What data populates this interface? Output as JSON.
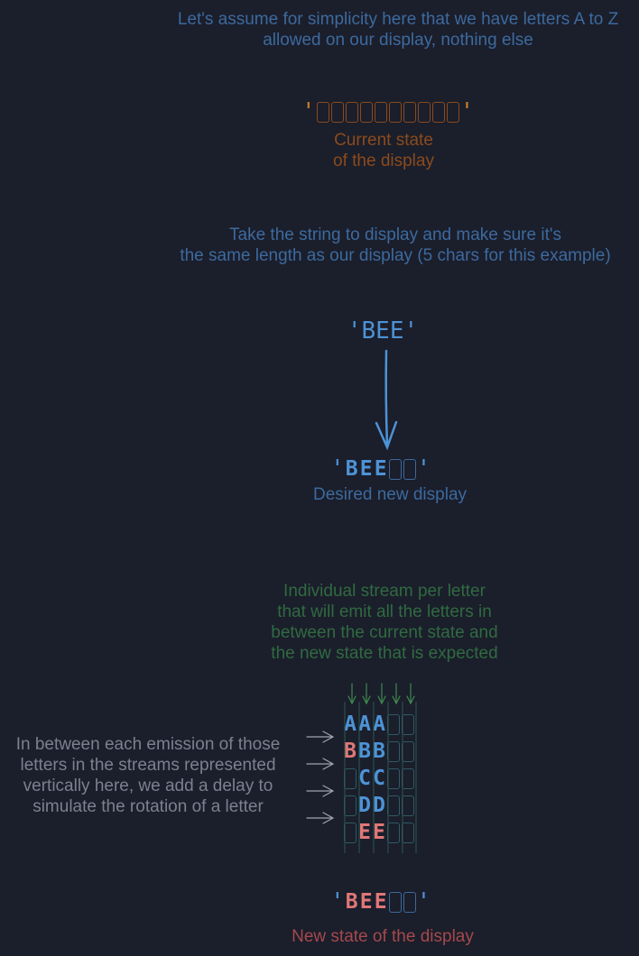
{
  "intro": {
    "line1": "Let's assume for simplicity here that we have letters A to Z",
    "line2": "allowed on our display, nothing else"
  },
  "current_state": {
    "quote_open": "'",
    "quote_close": "'",
    "label_line1": "Current state",
    "label_line2": "of the display",
    "empty_cells": 10
  },
  "step2": {
    "line1": "Take the string to display and make sure it's",
    "line2": "the same length as our display (5 chars for this example)"
  },
  "input_string": "'BEE'",
  "desired": {
    "quote_open": "'",
    "quote_close": "'",
    "letters": [
      "B",
      "E",
      "E",
      "",
      ""
    ],
    "label": "Desired new display"
  },
  "streams_note": {
    "line1": "Individual stream per letter",
    "line2": "that will emit all the letters in",
    "line3": "between the current state and",
    "line4": "the new state that is expected"
  },
  "delay_note": {
    "line1": "In between each emission of those",
    "line2": "letters in the streams represented",
    "line3": "vertically here, we add a delay to",
    "line4": "simulate the rotation of a letter"
  },
  "stream_grid": [
    [
      {
        "ch": "A",
        "color": "blue"
      },
      {
        "ch": "A",
        "color": "blue"
      },
      {
        "ch": "A",
        "color": "blue"
      },
      {
        "ch": "",
        "color": "none"
      },
      {
        "ch": "",
        "color": "none"
      }
    ],
    [
      {
        "ch": "B",
        "color": "red"
      },
      {
        "ch": "B",
        "color": "blue"
      },
      {
        "ch": "B",
        "color": "blue"
      },
      {
        "ch": "",
        "color": "none"
      },
      {
        "ch": "",
        "color": "none"
      }
    ],
    [
      {
        "ch": "",
        "color": "none"
      },
      {
        "ch": "C",
        "color": "blue"
      },
      {
        "ch": "C",
        "color": "blue"
      },
      {
        "ch": "",
        "color": "none"
      },
      {
        "ch": "",
        "color": "none"
      }
    ],
    [
      {
        "ch": "",
        "color": "none"
      },
      {
        "ch": "D",
        "color": "blue"
      },
      {
        "ch": "D",
        "color": "blue"
      },
      {
        "ch": "",
        "color": "none"
      },
      {
        "ch": "",
        "color": "none"
      }
    ],
    [
      {
        "ch": "",
        "color": "none"
      },
      {
        "ch": "E",
        "color": "red"
      },
      {
        "ch": "E",
        "color": "red"
      },
      {
        "ch": "",
        "color": "none"
      },
      {
        "ch": "",
        "color": "none"
      }
    ]
  ],
  "new_state": {
    "quote_open": "'",
    "quote_close": "'",
    "letters": [
      "B",
      "E",
      "E",
      "",
      ""
    ],
    "label": "New state of the display"
  },
  "colors": {
    "background": "#1b1e2b",
    "blue_text": "#3c6a9e",
    "bright_blue": "#4d93d6",
    "brown": "#8a4b1c",
    "green": "#2f6b40",
    "grey": "#7b8190",
    "red": "#e07777",
    "red_label": "#a4494c"
  }
}
